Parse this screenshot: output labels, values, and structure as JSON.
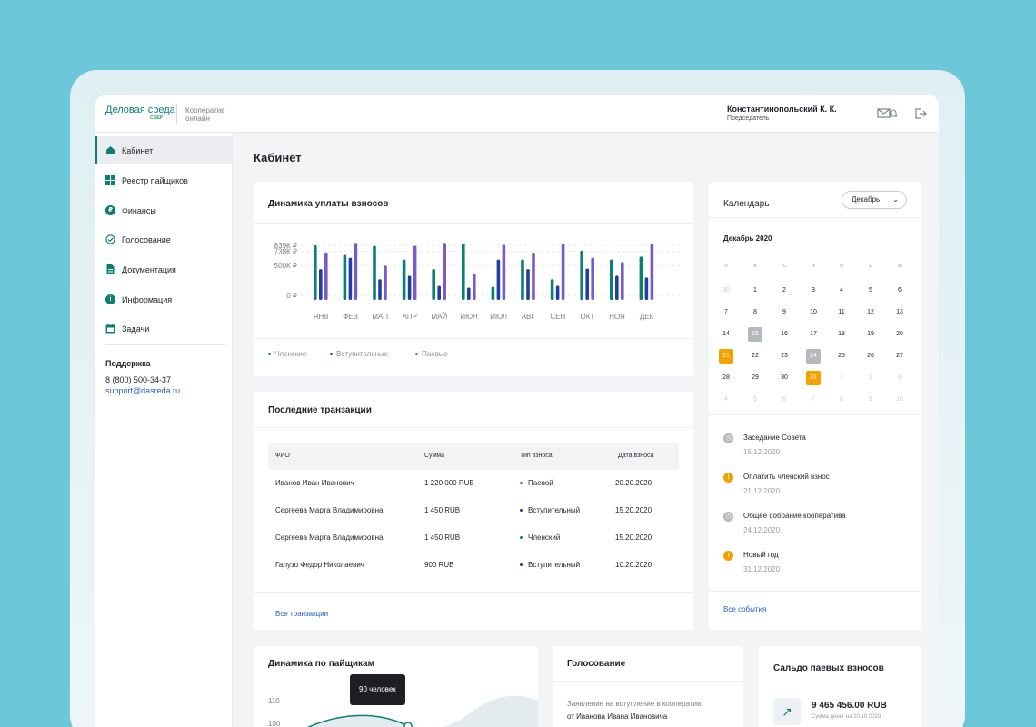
{
  "header": {
    "logo": "Деловая среда",
    "logo_sub": "СБЕР",
    "coop_label": "Кооператив онлайн",
    "user_name": "Константинопольский К. К.",
    "user_role": "Председатель",
    "icons": [
      "mail-bell-icon",
      "logout-icon"
    ]
  },
  "sidebar": {
    "items": [
      {
        "label": "Кабинет",
        "icon": "home-icon",
        "active": true
      },
      {
        "label": "Реестр пайщиков",
        "icon": "grid-icon"
      },
      {
        "label": "Финансы",
        "icon": "ruble-icon"
      },
      {
        "label": "Голосование",
        "icon": "check-circle-icon"
      },
      {
        "label": "Документация",
        "icon": "document-icon"
      },
      {
        "label": "Информация",
        "icon": "info-icon"
      },
      {
        "label": "Задачи",
        "icon": "calendar-icon"
      }
    ],
    "support_title": "Поддержка",
    "support_phone": "8 (800) 500-34-37",
    "support_email": "support@dasreda.ru"
  },
  "page_title": "Кабинет",
  "dues_card": {
    "title": "Динамика уплаты взносов",
    "legend": [
      "Членские",
      "Вступительные",
      "Паевые"
    ]
  },
  "chart_data": {
    "type": "bar",
    "categories": [
      "ЯНВ",
      "ФЕВ",
      "МАП",
      "АПР",
      "МАЙ",
      "ИЮН",
      "ИЮЛ",
      "АВГ",
      "СЕН",
      "ОКТ",
      "НОЯ",
      "ДЕК"
    ],
    "y_tick_labels": [
      "839К ₽",
      "738К ₽",
      "500К ₽",
      "0 ₽"
    ],
    "y_ticks": [
      839,
      738,
      500,
      0
    ],
    "ylim": [
      0,
      839
    ],
    "series": [
      {
        "name": "Членские",
        "color": "#0c7f73",
        "values": [
          839,
          680,
          830,
          600,
          440,
          868,
          145,
          600,
          270,
          749,
          600,
          650
        ]
      },
      {
        "name": "Вступительные",
        "color": "#1f3fa5",
        "values": [
          440,
          630,
          270,
          330,
          160,
          130,
          600,
          440,
          160,
          450,
          330,
          300
        ]
      },
      {
        "name": "Паевые",
        "color": "#7b5bc7",
        "values": [
          720,
          880,
          500,
          830,
          880,
          370,
          849,
          720,
          868,
          630,
          560,
          870
        ]
      }
    ]
  },
  "transactions": {
    "title": "Последние транзакции",
    "columns": [
      "ФИО",
      "Сумма",
      "Тип взноса",
      "Дата взноса"
    ],
    "rows": [
      {
        "name": "Иванов Иван Иванович",
        "sum": "1 220 000 RUB",
        "type": "Паевой",
        "type_color": "#7b5bc7",
        "date": "20.20.2020"
      },
      {
        "name": "Сергеева Марта Владимировна",
        "sum": "1 450 RUB",
        "type": "Вступительный",
        "type_color": "#1f3fa5",
        "date": "15.20.2020"
      },
      {
        "name": "Сергеева Марта Владимировна",
        "sum": "1 450 RUB",
        "type": "Членский",
        "type_color": "#0c7f73",
        "date": "15.20.2020"
      },
      {
        "name": "Галузо Федор Николаевич",
        "sum": "900 RUB",
        "type": "Вступительный",
        "type_color": "#1f3fa5",
        "date": "10.20.2020"
      }
    ],
    "all_link": "Все транзакции"
  },
  "calendar": {
    "title": "Календарь",
    "month_select": "Декабрь",
    "month_title": "Декабрь 2020",
    "weekdays": [
      "п",
      "в",
      "с",
      "ч",
      "п",
      "с",
      "в"
    ],
    "weeks": [
      [
        {
          "d": "30",
          "m": true
        },
        {
          "d": "1"
        },
        {
          "d": "2"
        },
        {
          "d": "3"
        },
        {
          "d": "4"
        },
        {
          "d": "5"
        },
        {
          "d": "6"
        }
      ],
      [
        {
          "d": "7"
        },
        {
          "d": "8"
        },
        {
          "d": "9"
        },
        {
          "d": "10"
        },
        {
          "d": "11"
        },
        {
          "d": "12"
        },
        {
          "d": "13"
        }
      ],
      [
        {
          "d": "14"
        },
        {
          "d": "15",
          "s": "gray"
        },
        {
          "d": "16"
        },
        {
          "d": "17"
        },
        {
          "d": "18"
        },
        {
          "d": "19"
        },
        {
          "d": "20"
        }
      ],
      [
        {
          "d": "21",
          "s": "orange"
        },
        {
          "d": "22"
        },
        {
          "d": "23"
        },
        {
          "d": "24",
          "s": "gray"
        },
        {
          "d": "25"
        },
        {
          "d": "26"
        },
        {
          "d": "27"
        }
      ],
      [
        {
          "d": "28"
        },
        {
          "d": "29"
        },
        {
          "d": "30"
        },
        {
          "d": "31",
          "s": "orange"
        },
        {
          "d": "1",
          "m": true
        },
        {
          "d": "2",
          "m": true
        },
        {
          "d": "3",
          "m": true
        }
      ],
      [
        {
          "d": "4",
          "m": true
        },
        {
          "d": "5",
          "m": true
        },
        {
          "d": "6",
          "m": true
        },
        {
          "d": "7",
          "m": true
        },
        {
          "d": "8",
          "m": true
        },
        {
          "d": "9",
          "m": true
        },
        {
          "d": "10",
          "m": true
        }
      ]
    ],
    "events": [
      {
        "title": "Заседание Совета",
        "date": "15.12.2020",
        "status": "past",
        "icon": "clock-icon",
        "color": "#b5b9be"
      },
      {
        "title": "Оплатить членский взнос",
        "date": "21.12.2020",
        "status": "important",
        "icon": "alert-icon",
        "color": "#f5a100"
      },
      {
        "title": "Общее собрание кооператива",
        "date": "24.12.2020",
        "status": "past",
        "icon": "clock-icon",
        "color": "#b5b9be"
      },
      {
        "title": "Новый год",
        "date": "31.12.2020",
        "status": "important",
        "icon": "alert-icon",
        "color": "#f5a100"
      }
    ],
    "all_link": "Все события"
  },
  "members_card": {
    "title": "Динамика по пайщикам",
    "y_labels": [
      "110",
      "100"
    ],
    "tooltip": "90 человек"
  },
  "voting_card": {
    "title": "Голосование",
    "text_line1": "Заявление на вступление в кооператив",
    "text_line2": "от Иванова Ивана Ивановича"
  },
  "balance_card": {
    "title": "Сальдо паевых взносов",
    "amount": "9 465 456.00 RUB",
    "caption": "Сумма денег на 20.10.2020"
  }
}
